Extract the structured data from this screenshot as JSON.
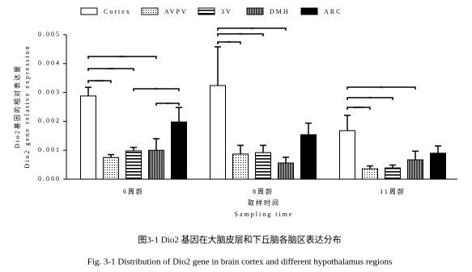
{
  "chart_data": {
    "type": "bar",
    "categories": [
      "6周龄",
      "8周龄",
      "11周龄"
    ],
    "x_label_zh": "取样时间",
    "x_label": "Sampling time",
    "y_label_zh": "Dio2基因的相对表达量",
    "y_label": "Dio2 gene relative expression",
    "ylim": [
      0,
      0.005
    ],
    "yticks": [
      {
        "value": 0,
        "label": "0.000"
      },
      {
        "value": 0.001,
        "label": "0.001"
      },
      {
        "value": 0.002,
        "label": "0.002"
      },
      {
        "value": 0.003,
        "label": "0.003"
      },
      {
        "value": 0.004,
        "label": "0.004"
      },
      {
        "value": 0.005,
        "label": "0.005"
      }
    ],
    "legend": "top",
    "series": [
      {
        "name": "Cortex",
        "color": "#ffffff",
        "pattern": "none",
        "values": [
          0.00288,
          0.00324,
          0.00168
        ],
        "errors": [
          0.0003,
          0.00134,
          0.00053
        ]
      },
      {
        "name": "AVPV",
        "color": "#ffffff",
        "pattern": "dots",
        "values": [
          0.00075,
          0.00087,
          0.00036
        ],
        "errors": [
          0.0001,
          0.0003,
          0.0001
        ]
      },
      {
        "name": "3V",
        "color": "#ffffff",
        "pattern": "hlines",
        "values": [
          0.00098,
          0.00092,
          0.00039
        ],
        "errors": [
          0.00012,
          0.00025,
          0.0001
        ]
      },
      {
        "name": "DMH",
        "color": "#666666",
        "pattern": "vlines",
        "values": [
          0.001,
          0.00056,
          0.00067
        ],
        "errors": [
          0.0004,
          0.0002,
          0.0003
        ]
      },
      {
        "name": "ARC",
        "color": "#000000",
        "pattern": "solid",
        "values": [
          0.00198,
          0.00154,
          0.0009
        ],
        "errors": [
          0.0005,
          0.0004,
          0.00025
        ]
      }
    ],
    "annotations": [
      {
        "category": 0,
        "from": 0,
        "to": 1,
        "label": "***"
      },
      {
        "category": 0,
        "from": 0,
        "to": 2,
        "label": "**"
      },
      {
        "category": 0,
        "from": 0,
        "to": 3,
        "label": "**"
      },
      {
        "category": 0,
        "from": 2,
        "to": 4,
        "label": "*"
      },
      {
        "category": 0,
        "from": 3,
        "to": 4,
        "label": "*"
      },
      {
        "category": 1,
        "from": 0,
        "to": 1,
        "label": "*"
      },
      {
        "category": 1,
        "from": 0,
        "to": 2,
        "label": "*"
      },
      {
        "category": 1,
        "from": 0,
        "to": 3,
        "label": "*"
      },
      {
        "category": 2,
        "from": 0,
        "to": 1,
        "label": "***"
      },
      {
        "category": 2,
        "from": 0,
        "to": 2,
        "label": "*"
      },
      {
        "category": 2,
        "from": 0,
        "to": 3,
        "label": "*"
      }
    ]
  },
  "caption": {
    "zh": "图3-1 Dio2 基因在大脑皮层和下丘脑各脑区表达分布",
    "en": "Fig. 3-1 Distribution of Dio2 gene in brain cortex and different hypothalamus regions"
  }
}
